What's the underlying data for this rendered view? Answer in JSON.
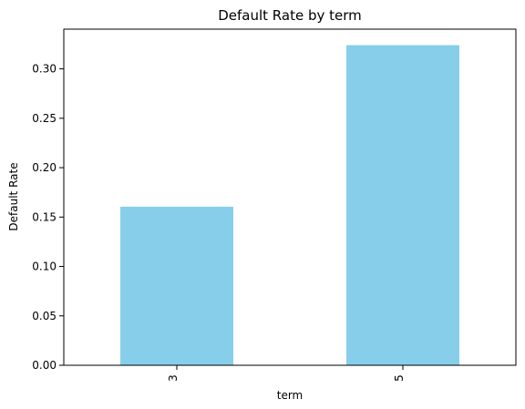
{
  "chart_data": {
    "type": "bar",
    "title": "Default Rate by term",
    "xlabel": "term",
    "ylabel": "Default Rate",
    "categories": [
      "3",
      "5"
    ],
    "values": [
      0.1605,
      0.324
    ],
    "ylim": [
      0,
      0.3402
    ],
    "yticks": [
      0.0,
      0.05,
      0.1,
      0.15,
      0.2,
      0.25,
      0.3
    ],
    "ytick_labels": [
      "0.00",
      "0.05",
      "0.10",
      "0.15",
      "0.20",
      "0.25",
      "0.30"
    ],
    "grid": false,
    "legend": "none",
    "colors": {
      "bar": "#87ceeb",
      "axis": "#000000",
      "background": "#ffffff"
    }
  }
}
